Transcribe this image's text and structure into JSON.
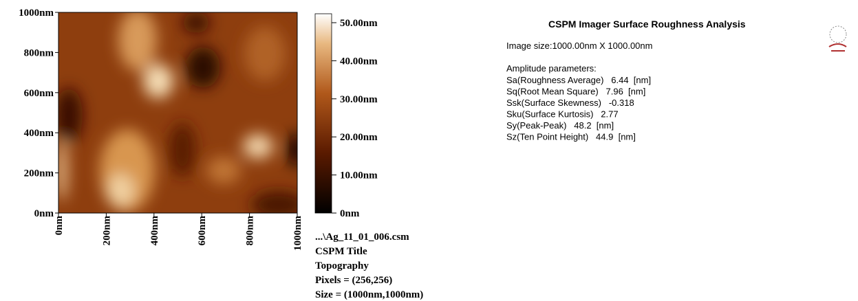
{
  "image_panel": {
    "y_ticks": [
      "1000nm",
      "800nm",
      "600nm",
      "400nm",
      "200nm",
      "0nm"
    ],
    "x_ticks": [
      "0nm",
      "200nm",
      "400nm",
      "600nm",
      "800nm",
      "1000nm"
    ],
    "colorbar_ticks": [
      "50.00nm",
      "40.00nm",
      "30.00nm",
      "20.00nm",
      "10.00nm",
      "0nm"
    ],
    "info": [
      "...\\Ag_11_01_006.csm",
      "CSPM Title",
      "Topography",
      "Pixels = (256,256)",
      "Size = (1000nm,1000nm)"
    ]
  },
  "analysis": {
    "title": "CSPM Imager Surface Roughness Analysis",
    "image_size": "Image size:1000.00nm X 1000.00nm",
    "section": "Amplitude parameters:",
    "parameters": [
      "Sa(Roughness Average)   6.44  [nm]",
      "Sq(Root Mean Square)   7.96  [nm]",
      "Ssk(Surface Skewness)   -0.318",
      "Sku(Surface Kurtosis)   2.77",
      "Sy(Peak-Peak)   48.2  [nm]",
      "Sz(Ten Point Height)   44.9  [nm]"
    ]
  }
}
